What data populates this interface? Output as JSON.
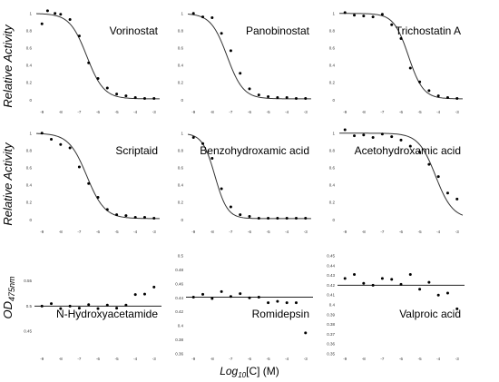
{
  "figure": {
    "ylabel_activity": "Relative Activity",
    "ylabel_od_main": "OD",
    "ylabel_od_sub": "475nm",
    "xlabel_main": "Log",
    "xlabel_sub": "10",
    "xlabel_rest": "[C] (M)"
  },
  "chart_data": [
    {
      "type": "scatter",
      "title": "Vorinostat",
      "xlim": [
        -9.4,
        -2.6
      ],
      "ylim": [
        -0.08,
        1.05
      ],
      "xticks": [
        -9,
        -8,
        -7,
        -6,
        -5,
        -4,
        -3
      ],
      "yticks": [
        0,
        0.2,
        0.4,
        0.6,
        0.8,
        1
      ],
      "x": [
        -9,
        -8.7,
        -8.3,
        -8,
        -7.5,
        -7,
        -6.5,
        -6,
        -5.5,
        -5,
        -4.5,
        -4,
        -3.5,
        -3
      ],
      "y": [
        0.88,
        1.03,
        1.0,
        0.99,
        0.93,
        0.74,
        0.43,
        0.25,
        0.14,
        0.07,
        0.05,
        0.03,
        0.02,
        0.02
      ],
      "fit": {
        "top": 1.0,
        "bottom": 0.015,
        "log_ic50": -6.6,
        "hill": -0.95
      }
    },
    {
      "type": "scatter",
      "title": "Panobinostat",
      "xlim": [
        -9.4,
        -2.6
      ],
      "ylim": [
        -0.08,
        1.05
      ],
      "xticks": [
        -9,
        -8,
        -7,
        -6,
        -5,
        -4,
        -3
      ],
      "yticks": [
        0,
        0.2,
        0.4,
        0.6,
        0.8,
        1
      ],
      "x": [
        -9,
        -8.5,
        -8,
        -7.5,
        -7,
        -6.5,
        -6,
        -5.5,
        -5,
        -4.5,
        -4,
        -3.5,
        -3
      ],
      "y": [
        1.0,
        0.96,
        0.95,
        0.77,
        0.57,
        0.31,
        0.13,
        0.06,
        0.04,
        0.03,
        0.03,
        0.02,
        0.02
      ],
      "fit": {
        "top": 1.0,
        "bottom": 0.015,
        "log_ic50": -7.2,
        "hill": -1.0
      }
    },
    {
      "type": "scatter",
      "title": "Trichostatin A",
      "xlim": [
        -9.4,
        -2.6
      ],
      "ylim": [
        -0.08,
        1.05
      ],
      "xticks": [
        -9,
        -8,
        -7,
        -6,
        -5,
        -4,
        -3
      ],
      "yticks": [
        0,
        0.2,
        0.4,
        0.6,
        0.8,
        1
      ],
      "x": [
        -9,
        -8.5,
        -8,
        -7.5,
        -7,
        -6.5,
        -6,
        -5.5,
        -5,
        -4.5,
        -4,
        -3.5,
        -3
      ],
      "y": [
        1.01,
        0.98,
        0.97,
        0.96,
        0.99,
        0.87,
        0.71,
        0.37,
        0.21,
        0.11,
        0.05,
        0.03,
        0.02
      ],
      "fit": {
        "top": 1.0,
        "bottom": 0.015,
        "log_ic50": -5.6,
        "hill": -1.1
      }
    },
    {
      "type": "scatter",
      "title": "Scriptaid",
      "xlim": [
        -9.4,
        -2.6
      ],
      "ylim": [
        -0.08,
        1.05
      ],
      "xticks": [
        -9,
        -8,
        -7,
        -6,
        -5,
        -4,
        -3
      ],
      "yticks": [
        0,
        0.2,
        0.4,
        0.6,
        0.8,
        1
      ],
      "x": [
        -9,
        -8.5,
        -8,
        -7.5,
        -7,
        -6.5,
        -6,
        -5.5,
        -5,
        -4.5,
        -4,
        -3.5,
        -3
      ],
      "y": [
        1.0,
        0.93,
        0.87,
        0.83,
        0.61,
        0.42,
        0.26,
        0.12,
        0.06,
        0.05,
        0.03,
        0.03,
        0.02
      ],
      "fit": {
        "top": 1.0,
        "bottom": 0.015,
        "log_ic50": -6.6,
        "hill": -0.9
      }
    },
    {
      "type": "scatter",
      "title": "Benzohydroxamic acid",
      "xlim": [
        -9.4,
        -2.6
      ],
      "ylim": [
        -0.08,
        1.05
      ],
      "xticks": [
        -9,
        -8,
        -7,
        -6,
        -5,
        -4,
        -3
      ],
      "yticks": [
        0,
        0.2,
        0.4,
        0.6,
        0.8,
        1
      ],
      "x": [
        -9,
        -8.5,
        -8,
        -7.5,
        -7,
        -6.5,
        -6,
        -5.5,
        -5,
        -4.5,
        -4,
        -3.5,
        -3
      ],
      "y": [
        0.95,
        0.88,
        0.71,
        0.36,
        0.15,
        0.06,
        0.04,
        0.02,
        0.02,
        0.02,
        0.02,
        0.02,
        0.02
      ],
      "fit": {
        "top": 1.0,
        "bottom": 0.015,
        "log_ic50": -7.85,
        "hill": -1.3
      }
    },
    {
      "type": "scatter",
      "title": "Acetohydroxamic acid",
      "xlim": [
        -9.4,
        -2.6
      ],
      "ylim": [
        -0.08,
        1.05
      ],
      "xticks": [
        -9,
        -8,
        -7,
        -6,
        -5,
        -4,
        -3
      ],
      "yticks": [
        0,
        0.2,
        0.4,
        0.6,
        0.8,
        1
      ],
      "x": [
        -9,
        -8.5,
        -8,
        -7.5,
        -7,
        -6.5,
        -6,
        -5.5,
        -5,
        -4.5,
        -4,
        -3.5,
        -3
      ],
      "y": [
        1.04,
        0.97,
        0.98,
        0.95,
        0.99,
        0.96,
        0.92,
        0.85,
        0.78,
        0.64,
        0.5,
        0.31,
        0.24
      ],
      "fit": {
        "top": 1.0,
        "bottom": 0.015,
        "log_ic50": -4.15,
        "hill": -0.95
      }
    },
    {
      "type": "scatter",
      "title": "N-Hydroxyacetamide",
      "xlim": [
        -9.4,
        -2.6
      ],
      "ylim": [
        0.405,
        0.6
      ],
      "xticks": [
        -9,
        -8,
        -7,
        -6,
        -5,
        -4,
        -3
      ],
      "yticks": [
        0.45,
        0.5,
        0.55
      ],
      "x": [
        -9,
        -8.5,
        -8,
        -7.5,
        -7,
        -6.5,
        -6,
        -5.5,
        -5,
        -4.5,
        -4,
        -3.5,
        -3
      ],
      "y": [
        0.5,
        0.505,
        0.495,
        0.5,
        0.496,
        0.503,
        0.495,
        0.502,
        0.496,
        0.502,
        0.523,
        0.524,
        0.538
      ],
      "hline": 0.5
    },
    {
      "type": "scatter",
      "title": "Romidepsin",
      "xlim": [
        -9.4,
        -2.6
      ],
      "ylim": [
        0.36,
        0.5
      ],
      "xticks": [
        -9,
        -8,
        -7,
        -6,
        -5,
        -4,
        -3
      ],
      "yticks": [
        0.36,
        0.38,
        0.4,
        0.42,
        0.44,
        0.46,
        0.48,
        0.5
      ],
      "x": [
        -9,
        -8.5,
        -8,
        -7.5,
        -7,
        -6.5,
        -6,
        -5.5,
        -5,
        -4.5,
        -4,
        -3.5,
        -3
      ],
      "y": [
        0.441,
        0.445,
        0.439,
        0.449,
        0.442,
        0.446,
        0.44,
        0.441,
        0.433,
        0.435,
        0.433,
        0.433,
        0.39
      ],
      "hline": 0.441
    },
    {
      "type": "scatter",
      "title": "Valproic acid",
      "xlim": [
        -9.4,
        -2.6
      ],
      "ylim": [
        0.35,
        0.45
      ],
      "xticks": [
        -9,
        -8,
        -7,
        -6,
        -5,
        -4,
        -3
      ],
      "yticks": [
        0.35,
        0.36,
        0.37,
        0.38,
        0.39,
        0.4,
        0.41,
        0.42,
        0.43,
        0.44,
        0.45
      ],
      "x": [
        -9,
        -8.5,
        -8,
        -7.5,
        -7,
        -6.5,
        -6,
        -5.5,
        -5,
        -4.5,
        -4,
        -3.5,
        -3
      ],
      "y": [
        0.427,
        0.431,
        0.422,
        0.42,
        0.427,
        0.426,
        0.421,
        0.431,
        0.416,
        0.423,
        0.41,
        0.412,
        0.396
      ],
      "hline": 0.42
    }
  ]
}
